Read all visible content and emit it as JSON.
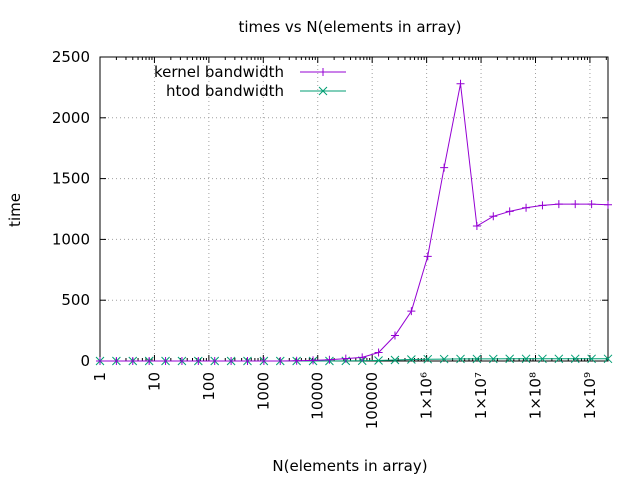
{
  "chart_data": {
    "type": "line",
    "title": "times vs N(elements in array)",
    "xlabel": "N(elements in array)",
    "ylabel": "time",
    "x_scale": "log10",
    "xlim": [
      1,
      2147483648
    ],
    "ylim": [
      0,
      2500
    ],
    "grid": true,
    "legend_position": "top-left",
    "y_ticks": [
      "0",
      "500",
      "1000",
      "1500",
      "2000",
      "2500"
    ],
    "y_tick_values": [
      0,
      500,
      1000,
      1500,
      2000,
      2500
    ],
    "x_ticks": [
      "1",
      "10",
      "100",
      "1000",
      "10000",
      "100000",
      "1×10⁶",
      "1×10⁷",
      "1×10⁸",
      "1×10⁹"
    ],
    "x_tick_values": [
      1,
      10,
      100,
      1000,
      10000,
      100000,
      1000000,
      10000000,
      100000000,
      1000000000
    ],
    "x": [
      1,
      2,
      4,
      8,
      16,
      32,
      64,
      128,
      256,
      512,
      1024,
      2048,
      4096,
      8192,
      16384,
      32768,
      65536,
      131072,
      262144,
      524288,
      1048576,
      2097152,
      4194304,
      8388608,
      16777216,
      33554432,
      67108864,
      134217728,
      268435456,
      536870912,
      1073741824,
      2147483648
    ],
    "series": [
      {
        "name": "kernel bandwidth",
        "color": "#9400d3",
        "marker": "plus",
        "values": [
          0,
          0,
          0,
          0,
          0,
          0,
          0,
          0,
          0,
          0,
          0,
          0,
          2,
          5,
          10,
          20,
          30,
          70,
          210,
          410,
          860,
          1590,
          2280,
          1110,
          1190,
          1230,
          1260,
          1280,
          1290,
          1290,
          1290,
          1285
        ]
      },
      {
        "name": "htod bandwidth",
        "color": "#009e73",
        "marker": "cross",
        "values": [
          0,
          0,
          0,
          0,
          0,
          0,
          0,
          0,
          0,
          0,
          0,
          0,
          0,
          0,
          0,
          1,
          2,
          4,
          8,
          12,
          15,
          16,
          17,
          17,
          17,
          18,
          18,
          18,
          18,
          18,
          18,
          18
        ]
      }
    ]
  }
}
